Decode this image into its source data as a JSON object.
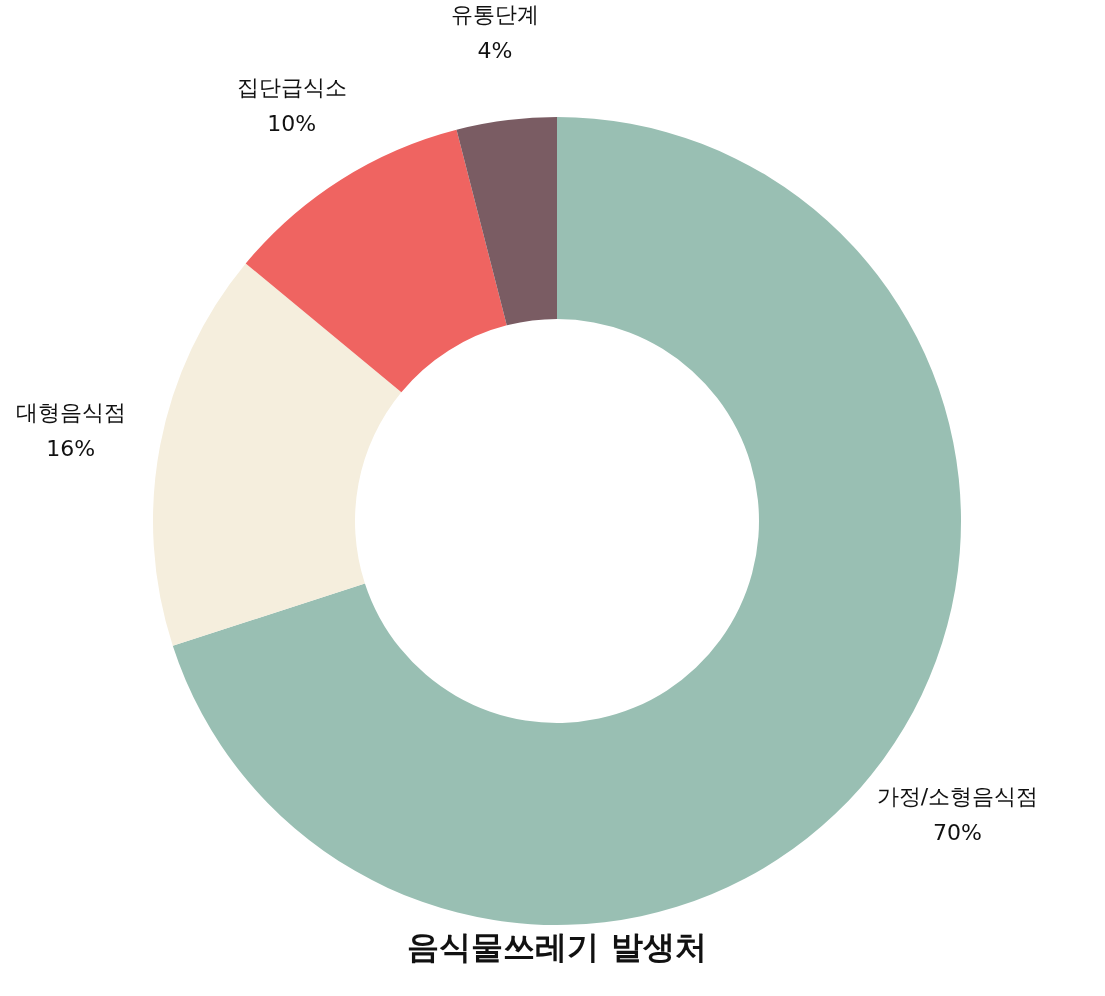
{
  "chart_data": {
    "type": "donut",
    "title": "음식물쓰레기 발생처",
    "categories": [
      "가정/소형음식점",
      "대형음식점",
      "집단급식소",
      "유통단계"
    ],
    "values": [
      70,
      16,
      10,
      4
    ],
    "colors": [
      "#99bfb3",
      "#f5eedd",
      "#ef6461",
      "#7a5c63"
    ],
    "value_labels": [
      "70%",
      "16%",
      "10%",
      "4%"
    ]
  }
}
